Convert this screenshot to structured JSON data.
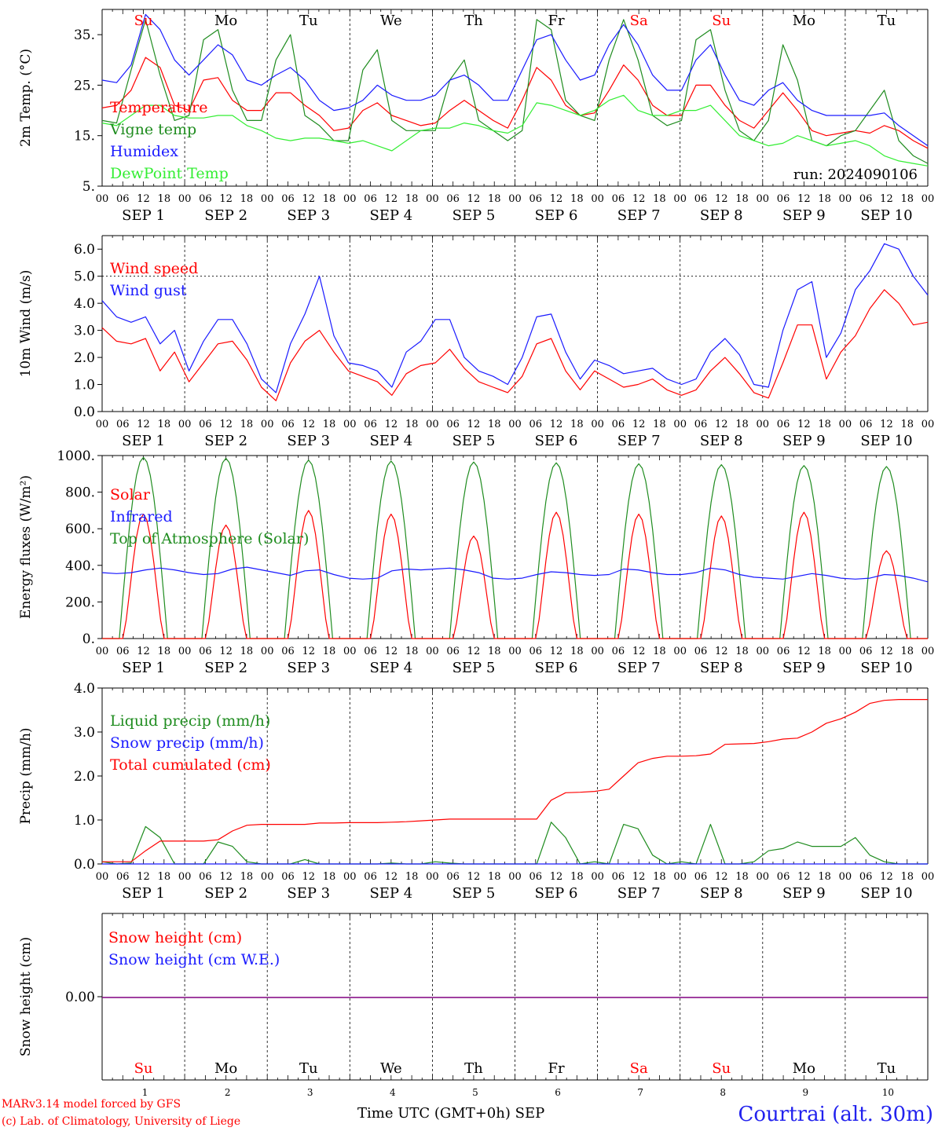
{
  "colors": {
    "red": "#ff0000",
    "green": "#1f8c1f",
    "blue": "#1a1aff",
    "lightgreen": "#33ee33",
    "purple": "#800080",
    "axis": "#000000"
  },
  "days": [
    "Su",
    "Mo",
    "Tu",
    "We",
    "Th",
    "Fr",
    "Sa",
    "Su",
    "Mo",
    "Tu"
  ],
  "weekend_days": [
    0,
    6,
    7
  ],
  "hour_ticks": [
    "00",
    "06",
    "12",
    "18"
  ],
  "day_axis_labels": [
    "SEP  1",
    "SEP  2",
    "SEP  3",
    "SEP  4",
    "SEP  5",
    "SEP  6",
    "SEP  7",
    "SEP  8",
    "SEP  9",
    "SEP 10"
  ],
  "day_numbers": [
    "1",
    "2",
    "3",
    "4",
    "5",
    "6",
    "7",
    "8",
    "9",
    "10"
  ],
  "x_title": "Time UTC (GMT+0h)",
  "x_month": "SEP",
  "credit_line1": "MARv3.14 model forced by GFS",
  "credit_line2": "(c) Lab. of Climatology, University of Liege",
  "station": "Courtrai (alt. 30m)",
  "run_label": "run: 2024090106",
  "chart_data": [
    {
      "type": "line",
      "ylabel": "2m Temp. (°C)",
      "ylim": [
        5,
        40
      ],
      "ytick_values": [
        5,
        15,
        25,
        35
      ],
      "ytick_labels": [
        "5.",
        "15.",
        "25.",
        "35."
      ],
      "x_hours_step": 6,
      "series": [
        {
          "name": "Temperature",
          "color": "#ff0000",
          "values": [
            20.5,
            21,
            24,
            30.5,
            28.5,
            21,
            20,
            26,
            26.5,
            22,
            20,
            20,
            23.5,
            23.5,
            21,
            19,
            16,
            16.5,
            20,
            21.5,
            19,
            18,
            17,
            17.5,
            20,
            22,
            20,
            18,
            16.5,
            22,
            28.5,
            26,
            21,
            19,
            19.5,
            24,
            29,
            26,
            21,
            19,
            19,
            25,
            25,
            21,
            18,
            16.5,
            20,
            23.5,
            20,
            16,
            15,
            15.5,
            16,
            15.5,
            17,
            16,
            14,
            12.5
          ]
        },
        {
          "name": "Vigne temp",
          "color": "#1f8c1f",
          "values": [
            18,
            17.5,
            28,
            38,
            27,
            18,
            19,
            34,
            36,
            24,
            18,
            18,
            30,
            35,
            19,
            17,
            14,
            14,
            28,
            32,
            18,
            16,
            16,
            16,
            26,
            30,
            18,
            16,
            14,
            16,
            38,
            36,
            22,
            19,
            18,
            30,
            38,
            30,
            19,
            17,
            18,
            34,
            36,
            24,
            16,
            14,
            18,
            33,
            26,
            14,
            13,
            15,
            16,
            20,
            24,
            14,
            11,
            9.5
          ]
        },
        {
          "name": "Humidex",
          "color": "#1a1aff",
          "values": [
            26,
            25.5,
            29,
            39,
            36,
            30,
            27,
            30,
            33,
            31,
            26,
            25,
            27,
            28.5,
            26,
            22,
            20,
            20.5,
            22,
            25,
            23,
            22,
            22,
            23,
            26,
            27,
            25,
            22,
            22,
            28,
            34,
            35,
            30,
            26,
            27,
            33,
            37,
            33,
            27,
            24,
            24,
            30,
            33,
            27,
            22,
            21,
            24,
            25.5,
            22,
            20,
            19,
            19,
            19,
            19,
            19.5,
            17,
            15,
            13
          ]
        },
        {
          "name": "DewPoint Temp",
          "color": "#33ee33",
          "values": [
            17.5,
            17,
            19,
            21,
            21,
            19,
            18.5,
            18.5,
            19,
            19,
            17,
            16,
            14.5,
            14,
            14.5,
            14.5,
            14,
            13.5,
            14,
            13,
            12,
            14,
            16,
            16.5,
            16.5,
            17.5,
            17,
            16,
            15.5,
            17,
            21.5,
            21,
            20,
            19,
            20,
            22,
            23,
            20,
            19,
            19,
            20,
            20,
            21,
            18,
            15,
            14,
            13,
            13.5,
            15,
            14,
            13,
            13.5,
            14,
            13,
            11,
            10,
            9.5,
            9
          ]
        }
      ]
    },
    {
      "type": "line",
      "ylabel": "10m Wind (m/s)",
      "ylim": [
        0,
        6.5
      ],
      "ytick_values": [
        0,
        1,
        2,
        3,
        4,
        5,
        6
      ],
      "ytick_labels": [
        "0.0",
        "1.0",
        "2.0",
        "3.0",
        "4.0",
        "5.0",
        "6.0"
      ],
      "reference_line": 5,
      "x_hours_step": 6,
      "series": [
        {
          "name": "Wind speed",
          "color": "#ff0000",
          "values": [
            3.1,
            2.6,
            2.5,
            2.7,
            1.5,
            2.2,
            1.1,
            1.8,
            2.5,
            2.6,
            1.9,
            0.9,
            0.4,
            1.8,
            2.6,
            3.0,
            2.2,
            1.5,
            1.3,
            1.1,
            0.6,
            1.4,
            1.7,
            1.8,
            2.3,
            1.6,
            1.1,
            0.9,
            0.7,
            1.3,
            2.5,
            2.7,
            1.5,
            0.8,
            1.5,
            1.2,
            0.9,
            1.0,
            1.2,
            0.8,
            0.6,
            0.8,
            1.5,
            2.0,
            1.4,
            0.7,
            0.5,
            1.8,
            3.2,
            3.2,
            1.2,
            2.2,
            2.8,
            3.8,
            4.5,
            4.0,
            3.2,
            3.3
          ]
        },
        {
          "name": "Wind gust",
          "color": "#1a1aff",
          "values": [
            4.1,
            3.5,
            3.3,
            3.5,
            2.5,
            3.0,
            1.5,
            2.6,
            3.4,
            3.4,
            2.5,
            1.2,
            0.7,
            2.5,
            3.6,
            5.0,
            2.8,
            1.8,
            1.7,
            1.5,
            0.9,
            2.2,
            2.6,
            3.4,
            3.4,
            2.0,
            1.5,
            1.3,
            1.0,
            2.0,
            3.5,
            3.6,
            2.2,
            1.2,
            1.9,
            1.7,
            1.4,
            1.5,
            1.6,
            1.2,
            1.0,
            1.2,
            2.2,
            2.7,
            2.1,
            1.0,
            0.9,
            3.0,
            4.5,
            4.8,
            2.0,
            2.9,
            4.5,
            5.2,
            6.2,
            6.0,
            5.0,
            4.3
          ]
        }
      ]
    },
    {
      "type": "line",
      "ylabel": "Energy fluxes (W/m²)",
      "ylim": [
        0,
        1000
      ],
      "ytick_values": [
        0,
        200,
        400,
        600,
        800,
        1000
      ],
      "ytick_labels": [
        "0.",
        "200.",
        "400.",
        "600.",
        "800.",
        "1000."
      ],
      "solar_peaks": [
        680,
        620,
        700,
        680,
        560,
        690,
        680,
        670,
        690,
        480
      ],
      "toa_peaks": [
        990,
        985,
        975,
        970,
        965,
        960,
        955,
        950,
        945,
        940
      ],
      "infrared_values": [
        360,
        355,
        360,
        375,
        385,
        375,
        360,
        350,
        355,
        380,
        390,
        375,
        360,
        345,
        370,
        375,
        350,
        330,
        325,
        330,
        370,
        380,
        375,
        380,
        385,
        375,
        360,
        330,
        325,
        330,
        350,
        365,
        360,
        350,
        345,
        350,
        380,
        375,
        360,
        350,
        350,
        360,
        385,
        375,
        350,
        335,
        330,
        325,
        340,
        355,
        345,
        330,
        325,
        330,
        350,
        345,
        330,
        310
      ],
      "x_hours_step": 6,
      "series": [
        {
          "name": "Solar",
          "color": "#ff0000"
        },
        {
          "name": "Infrared",
          "color": "#1a1aff"
        },
        {
          "name": "Top of Atmosphere (Solar)",
          "color": "#1f8c1f"
        }
      ]
    },
    {
      "type": "line",
      "ylabel": "Precip (mm/h)",
      "ylim": [
        0,
        4
      ],
      "ytick_values": [
        0,
        1,
        2,
        3,
        4
      ],
      "ytick_labels": [
        "0.0",
        "1.0",
        "2.0",
        "3.0",
        "4.0"
      ],
      "x_hours_step": 6,
      "series": [
        {
          "name": "Liquid precip (mm/h)",
          "color": "#1f8c1f",
          "values": [
            0.05,
            0,
            0.02,
            0.85,
            0.6,
            0,
            0,
            0,
            0.5,
            0.4,
            0.05,
            0,
            0,
            0,
            0.1,
            0,
            0,
            0,
            0,
            0,
            0.02,
            0,
            0,
            0.05,
            0.02,
            0,
            0,
            0,
            0,
            0,
            0,
            0.95,
            0.6,
            0,
            0.05,
            0,
            0.9,
            0.8,
            0.2,
            0,
            0.05,
            0,
            0.9,
            0,
            0,
            0.05,
            0.3,
            0.35,
            0.5,
            0.4,
            0.4,
            0.4,
            0.6,
            0.2,
            0.05,
            0,
            0,
            0
          ]
        },
        {
          "name": "Snow precip (mm/h)",
          "color": "#1a1aff",
          "values": [
            0,
            0,
            0,
            0,
            0,
            0,
            0,
            0,
            0,
            0,
            0,
            0,
            0,
            0,
            0,
            0,
            0,
            0,
            0,
            0,
            0,
            0,
            0,
            0,
            0,
            0,
            0,
            0,
            0,
            0,
            0,
            0,
            0,
            0,
            0,
            0,
            0,
            0,
            0,
            0,
            0,
            0,
            0,
            0,
            0,
            0,
            0,
            0,
            0,
            0,
            0,
            0,
            0,
            0,
            0,
            0,
            0,
            0
          ]
        },
        {
          "name": "Total cumulated (cm)",
          "color": "#ff0000",
          "values": [
            0.05,
            0.05,
            0.05,
            0.3,
            0.52,
            0.52,
            0.52,
            0.52,
            0.55,
            0.75,
            0.88,
            0.9,
            0.9,
            0.9,
            0.9,
            0.93,
            0.93,
            0.94,
            0.94,
            0.94,
            0.95,
            0.96,
            0.98,
            1.0,
            1.02,
            1.02,
            1.02,
            1.02,
            1.02,
            1.02,
            1.02,
            1.45,
            1.62,
            1.63,
            1.65,
            1.7,
            2.0,
            2.3,
            2.4,
            2.45,
            2.45,
            2.46,
            2.5,
            2.72,
            2.73,
            2.74,
            2.78,
            2.84,
            2.86,
            3.0,
            3.2,
            3.3,
            3.45,
            3.65,
            3.72,
            3.74,
            3.74,
            3.74
          ]
        }
      ]
    },
    {
      "type": "line",
      "ylabel": "Snow height (cm)",
      "ytick_values": [
        0
      ],
      "ytick_labels": [
        "0.00"
      ],
      "series": [
        {
          "name": "Snow height (cm)",
          "color": "#ff0000",
          "values": [
            0
          ]
        },
        {
          "name": "Snow height (cm W.E.)",
          "color": "#1a1aff",
          "values": [
            0
          ]
        }
      ]
    }
  ]
}
